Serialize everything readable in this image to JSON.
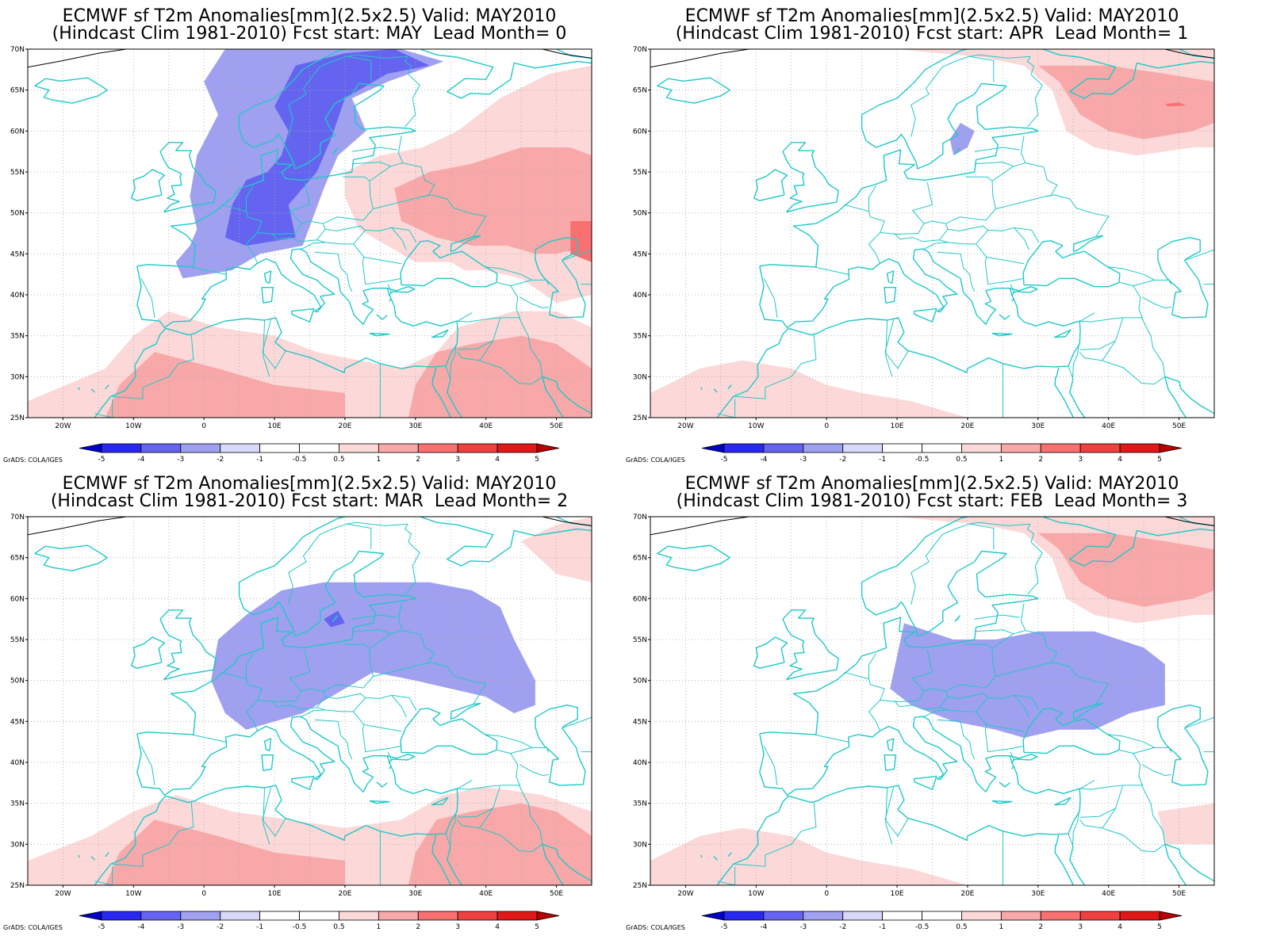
{
  "colors": {
    "coast": "#20c8c8",
    "border": "#20c8c8",
    "grid": "#aaaaaa",
    "frame": "#000000",
    "anomaly_scale": [
      "#0000c8",
      "#2828f0",
      "#6464f0",
      "#a0a0f0",
      "#d8d8f8",
      "#ffffff",
      "#ffffff",
      "#fcd8d8",
      "#f8a8a8",
      "#f87070",
      "#f04040",
      "#e01818",
      "#b80000"
    ]
  },
  "credit": "GrADS: COLA/IGES",
  "lat_ticks": [
    "70N",
    "65N",
    "60N",
    "55N",
    "50N",
    "45N",
    "40N",
    "35N",
    "30N",
    "25N"
  ],
  "lon_ticks": [
    "20W",
    "10W",
    "0",
    "10E",
    "20E",
    "30E",
    "40E",
    "50E"
  ],
  "colorbar_labels": [
    "-5",
    "-4",
    "-3",
    "-2",
    "-1",
    "-0.5",
    "0.5",
    "1",
    "2",
    "3",
    "4",
    "5"
  ],
  "panels": [
    {
      "title_line1": "ECMWF sf T2m Anomalies[mm](2.5x2.5) Valid: MAY2010",
      "title_line2": "(Hindcast Clim 1981-2010) Fcst start: MAY  Lead Month= 0",
      "regions": [
        {
          "level": 3,
          "area": "cold-northwest"
        },
        {
          "level": 2,
          "area": "colder-scandinavia-central"
        },
        {
          "level": 7,
          "area": "warm-east"
        },
        {
          "level": 8,
          "area": "warmer-russia"
        },
        {
          "level": 9,
          "area": "warmest-caspian"
        },
        {
          "level": 7,
          "area": "warm-southwest"
        },
        {
          "level": 8,
          "area": "warmer-north-africa"
        },
        {
          "level": 8,
          "area": "warmer-middle-east"
        }
      ]
    },
    {
      "title_line1": "ECMWF sf T2m Anomalies[mm](2.5x2.5) Valid: MAY2010",
      "title_line2": "(Hindcast Clim 1981-2010) Fcst start: APR  Lead Month= 1",
      "regions": [
        {
          "level": 7,
          "area": "warm-north-russia"
        },
        {
          "level": 8,
          "area": "warmer-north-russia"
        },
        {
          "level": 9,
          "area": "warmest-spot"
        },
        {
          "level": 3,
          "area": "cold-baltic-spot"
        },
        {
          "level": 7,
          "area": "warm-sw-corner"
        }
      ]
    },
    {
      "title_line1": "ECMWF sf T2m Anomalies[mm](2.5x2.5) Valid: MAY2010",
      "title_line2": "(Hindcast Clim 1981-2010) Fcst start: MAR  Lead Month= 2",
      "regions": [
        {
          "level": 3,
          "area": "cold-central-europe"
        },
        {
          "level": 2,
          "area": "colder-baltic-spot"
        },
        {
          "level": 7,
          "area": "warm-south"
        },
        {
          "level": 8,
          "area": "warmer-north-africa"
        },
        {
          "level": 8,
          "area": "warmer-middle-east"
        },
        {
          "level": 7,
          "area": "warm-ne-corner"
        }
      ]
    },
    {
      "title_line1": "ECMWF sf T2m Anomalies[mm](2.5x2.5) Valid: MAY2010",
      "title_line2": "(Hindcast Clim 1981-2010) Fcst start: FEB  Lead Month= 3",
      "regions": [
        {
          "level": 3,
          "area": "cold-eastern-europe"
        },
        {
          "level": 7,
          "area": "warm-north-russia"
        },
        {
          "level": 8,
          "area": "warmer-north-russia"
        },
        {
          "level": 7,
          "area": "warm-sw-corner"
        },
        {
          "level": 7,
          "area": "warm-se-spot"
        }
      ]
    }
  ]
}
